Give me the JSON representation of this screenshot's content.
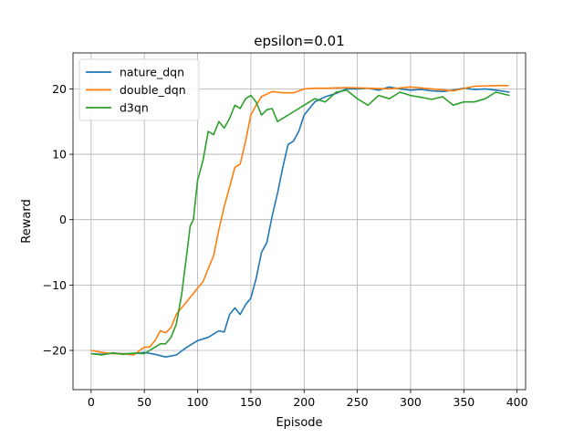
{
  "chart_data": {
    "type": "line",
    "title": "epsilon=0.01",
    "xlabel": "Episode",
    "ylabel": "Reward",
    "xlim": [
      -17,
      408
    ],
    "ylim": [
      -26,
      25.5
    ],
    "xticks": [
      0,
      50,
      100,
      150,
      200,
      250,
      300,
      350,
      400
    ],
    "yticks": [
      -20,
      -10,
      0,
      10,
      20
    ],
    "xtick_labels": [
      "0",
      "50",
      "100",
      "150",
      "200",
      "250",
      "300",
      "350",
      "400"
    ],
    "ytick_labels": [
      "−20",
      "−10",
      "0",
      "10",
      "20"
    ],
    "grid": true,
    "legend_position": "upper-left",
    "series": [
      {
        "name": "nature_dqn",
        "color": "#1f77b4",
        "x": [
          0,
          10,
          20,
          30,
          40,
          50,
          60,
          70,
          80,
          90,
          100,
          110,
          115,
          120,
          125,
          130,
          135,
          140,
          145,
          150,
          155,
          160,
          165,
          170,
          175,
          180,
          185,
          190,
          195,
          200,
          205,
          210,
          220,
          230,
          240,
          250,
          260,
          270,
          280,
          290,
          300,
          310,
          320,
          330,
          340,
          350,
          360,
          370,
          380,
          393
        ],
        "y": [
          -20.5,
          -20.6,
          -20.4,
          -20.5,
          -20.5,
          -20.3,
          -20.6,
          -21.0,
          -20.7,
          -19.5,
          -18.5,
          -18.0,
          -17.5,
          -17.0,
          -17.2,
          -14.5,
          -13.5,
          -14.5,
          -13.0,
          -12.0,
          -9.0,
          -5.0,
          -3.5,
          0.5,
          4.0,
          8.0,
          11.5,
          12.0,
          13.5,
          16.0,
          17.0,
          18.0,
          18.8,
          19.3,
          20.0,
          20.0,
          20.1,
          19.8,
          20.3,
          20.0,
          19.8,
          19.9,
          19.7,
          19.6,
          19.8,
          20.1,
          19.9,
          20.0,
          19.8,
          19.5
        ]
      },
      {
        "name": "double_dqn",
        "color": "#ff7f0e",
        "x": [
          0,
          10,
          20,
          30,
          40,
          50,
          55,
          60,
          65,
          70,
          75,
          80,
          85,
          90,
          95,
          100,
          105,
          110,
          115,
          120,
          125,
          130,
          135,
          140,
          145,
          150,
          155,
          160,
          165,
          170,
          180,
          190,
          200,
          210,
          220,
          240,
          260,
          280,
          300,
          320,
          340,
          360,
          380,
          392
        ],
        "y": [
          -20.0,
          -20.3,
          -20.5,
          -20.5,
          -20.7,
          -19.5,
          -19.5,
          -18.5,
          -17.0,
          -17.3,
          -16.5,
          -14.5,
          -13.5,
          -12.5,
          -11.5,
          -10.5,
          -9.5,
          -7.5,
          -5.5,
          -1.5,
          2.0,
          5.0,
          8.0,
          8.5,
          12.0,
          16.0,
          17.5,
          18.8,
          19.2,
          19.6,
          19.4,
          19.4,
          20.0,
          20.1,
          20.1,
          20.2,
          20.1,
          20.0,
          20.3,
          20.0,
          19.7,
          20.4,
          20.5,
          20.5
        ]
      },
      {
        "name": "d3qn",
        "color": "#2ca02c",
        "x": [
          0,
          10,
          20,
          30,
          40,
          50,
          55,
          60,
          65,
          70,
          75,
          80,
          85,
          90,
          93,
          96,
          100,
          105,
          110,
          115,
          120,
          125,
          130,
          135,
          140,
          145,
          150,
          155,
          160,
          165,
          170,
          175,
          180,
          190,
          200,
          210,
          220,
          230,
          240,
          250,
          260,
          270,
          280,
          290,
          300,
          310,
          320,
          330,
          340,
          350,
          360,
          370,
          380,
          393
        ],
        "y": [
          -20.5,
          -20.7,
          -20.4,
          -20.6,
          -20.4,
          -20.5,
          -20.0,
          -19.5,
          -19.0,
          -19.0,
          -18.0,
          -16.0,
          -11.5,
          -5.0,
          -1.0,
          0.0,
          6.0,
          9.0,
          13.5,
          13.0,
          15.0,
          14.0,
          15.5,
          17.5,
          17.0,
          18.5,
          19.0,
          18.0,
          16.0,
          16.8,
          17.0,
          15.0,
          15.5,
          16.5,
          17.5,
          18.5,
          18.0,
          19.5,
          19.8,
          18.5,
          17.5,
          19.0,
          18.5,
          19.5,
          19.0,
          18.7,
          18.4,
          18.8,
          17.5,
          18.0,
          18.0,
          18.5,
          19.5,
          19.0
        ]
      }
    ]
  }
}
